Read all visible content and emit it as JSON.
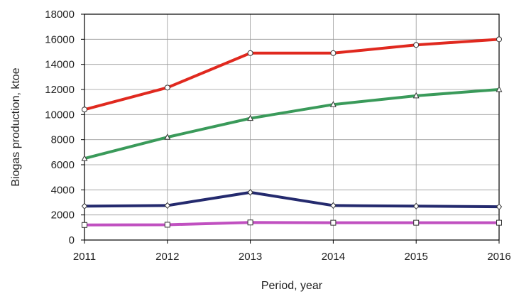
{
  "chart_data": {
    "type": "line",
    "title": "",
    "xlabel": "Period, year",
    "ylabel": "Biogas production, ktoe",
    "x": [
      2011,
      2012,
      2013,
      2014,
      2015,
      2016
    ],
    "x_tick_labels": [
      "2011",
      "2012",
      "2013",
      "2014",
      "2015",
      "2016"
    ],
    "xlim": [
      2011,
      2016
    ],
    "ylim": [
      0,
      18000
    ],
    "y_ticks": [
      0,
      2000,
      4000,
      6000,
      8000,
      10000,
      12000,
      14000,
      16000,
      18000
    ],
    "y_tick_labels": [
      "0",
      "2000",
      "4000",
      "6000",
      "8000",
      "10000",
      "12000",
      "14000",
      "16000",
      "18000"
    ],
    "grid": true,
    "legend": "none",
    "series": [
      {
        "values": [
          10400,
          12150,
          14900,
          14900,
          15550,
          16000
        ],
        "color": "#e0291f",
        "marker": "circle"
      },
      {
        "values": [
          6500,
          8200,
          9700,
          10800,
          11500,
          12000
        ],
        "color": "#3a9a5a",
        "marker": "triangle"
      },
      {
        "values": [
          2700,
          2750,
          3800,
          2750,
          2700,
          2650
        ],
        "color": "#242a6e",
        "marker": "diamond"
      },
      {
        "values": [
          1200,
          1220,
          1400,
          1380,
          1380,
          1380
        ],
        "color": "#c050c0",
        "marker": "square"
      }
    ]
  }
}
